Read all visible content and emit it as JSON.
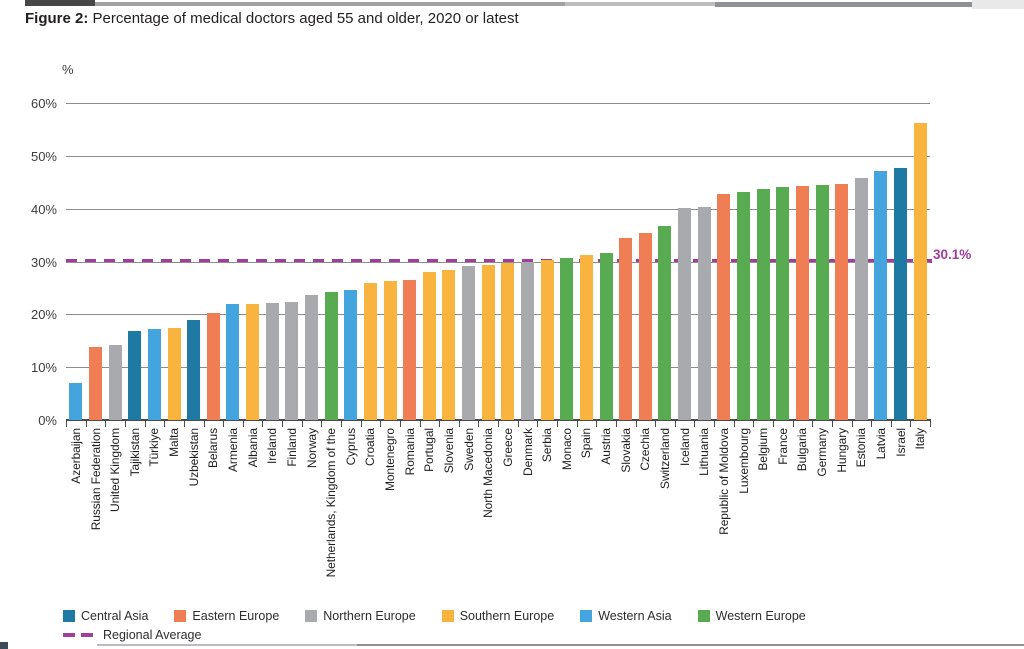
{
  "page": {
    "title_prefix": "Figure 2:",
    "title_text": " Percentage of medical doctors aged 55 and older, 2020 or latest"
  },
  "chart_data": {
    "type": "bar",
    "title": "Figure 2: Percentage of medical doctors aged 55 and older, 2020 or latest",
    "unit_label": "%",
    "ylabel": "%",
    "ylim": [
      0,
      60
    ],
    "yticks": [
      "0%",
      "10%",
      "20%",
      "30%",
      "40%",
      "50%",
      "60%"
    ],
    "grid": true,
    "legend_position": "bottom",
    "regional_average": {
      "value": 30.1,
      "label": "30.1%",
      "legend_label": "Regional Average",
      "color": "#A13D9B"
    },
    "regions": {
      "Central Asia": "#1F7AA3",
      "Eastern Europe": "#EF7E55",
      "Northern Europe": "#A8AAAD",
      "Southern Europe": "#F8B43F",
      "Western Asia": "#44A5DE",
      "Western Europe": "#58AB50"
    },
    "legend": [
      "Central Asia",
      "Eastern Europe",
      "Northern Europe",
      "Southern Europe",
      "Western Asia",
      "Western Europe"
    ],
    "bars": [
      {
        "country": "Azerbaijan",
        "region": "Western Asia",
        "value": 7.0
      },
      {
        "country": "Russian Federation",
        "region": "Eastern Europe",
        "value": 13.9
      },
      {
        "country": "United Kingdom",
        "region": "Northern Europe",
        "value": 14.3
      },
      {
        "country": "Tajikistan",
        "region": "Central Asia",
        "value": 16.8
      },
      {
        "country": "Türkiye",
        "region": "Western Asia",
        "value": 17.3
      },
      {
        "country": "Malta",
        "region": "Southern Europe",
        "value": 17.5
      },
      {
        "country": "Uzbekistan",
        "region": "Central Asia",
        "value": 19.0
      },
      {
        "country": "Belarus",
        "region": "Eastern Europe",
        "value": 20.3
      },
      {
        "country": "Armenia",
        "region": "Western Asia",
        "value": 21.9
      },
      {
        "country": "Albania",
        "region": "Southern Europe",
        "value": 22.0
      },
      {
        "country": "Ireland",
        "region": "Northern Europe",
        "value": 22.2
      },
      {
        "country": "Finland",
        "region": "Northern Europe",
        "value": 22.4
      },
      {
        "country": "Norway",
        "region": "Northern Europe",
        "value": 23.6
      },
      {
        "country": "Netherlands, Kingdom of the",
        "region": "Western Europe",
        "value": 24.2
      },
      {
        "country": "Cyprus",
        "region": "Western Asia",
        "value": 24.7
      },
      {
        "country": "Croatia",
        "region": "Southern Europe",
        "value": 26.0
      },
      {
        "country": "Montenegro",
        "region": "Southern Europe",
        "value": 26.4
      },
      {
        "country": "Romania",
        "region": "Eastern Europe",
        "value": 26.5
      },
      {
        "country": "Portugal",
        "region": "Southern Europe",
        "value": 28.0
      },
      {
        "country": "Slovenia",
        "region": "Southern Europe",
        "value": 28.4
      },
      {
        "country": "Sweden",
        "region": "Northern Europe",
        "value": 29.2
      },
      {
        "country": "North Macedonia",
        "region": "Southern Europe",
        "value": 29.4
      },
      {
        "country": "Greece",
        "region": "Southern Europe",
        "value": 29.7
      },
      {
        "country": "Denmark",
        "region": "Northern Europe",
        "value": 29.9
      },
      {
        "country": "Serbia",
        "region": "Southern Europe",
        "value": 30.4
      },
      {
        "country": "Monaco",
        "region": "Western Europe",
        "value": 30.7
      },
      {
        "country": "Spain",
        "region": "Southern Europe",
        "value": 31.3
      },
      {
        "country": "Austria",
        "region": "Western Europe",
        "value": 31.7
      },
      {
        "country": "Slovakia",
        "region": "Eastern Europe",
        "value": 34.4
      },
      {
        "country": "Czechia",
        "region": "Eastern Europe",
        "value": 35.4
      },
      {
        "country": "Switzerland",
        "region": "Western Europe",
        "value": 36.8
      },
      {
        "country": "Iceland",
        "region": "Northern Europe",
        "value": 40.2
      },
      {
        "country": "Lithuania",
        "region": "Northern Europe",
        "value": 40.3
      },
      {
        "country": "Republic of Moldova",
        "region": "Eastern Europe",
        "value": 42.9
      },
      {
        "country": "Luxembourg",
        "region": "Western Europe",
        "value": 43.2
      },
      {
        "country": "Belgium",
        "region": "Western Europe",
        "value": 43.8
      },
      {
        "country": "France",
        "region": "Western Europe",
        "value": 44.1
      },
      {
        "country": "Bulgaria",
        "region": "Eastern Europe",
        "value": 44.3
      },
      {
        "country": "Germany",
        "region": "Western Europe",
        "value": 44.5
      },
      {
        "country": "Hungary",
        "region": "Eastern Europe",
        "value": 44.8
      },
      {
        "country": "Estonia",
        "region": "Northern Europe",
        "value": 45.9
      },
      {
        "country": "Latvia",
        "region": "Western Asia",
        "value": 47.2
      },
      {
        "country": "Israel",
        "region": "Central Asia",
        "value": 47.8
      },
      {
        "country": "Italy",
        "region": "Southern Europe",
        "value": 56.2
      }
    ]
  }
}
